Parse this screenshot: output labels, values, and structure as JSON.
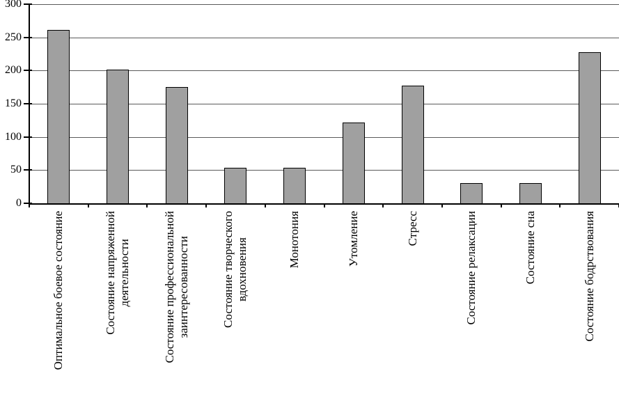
{
  "chart_data": {
    "type": "bar",
    "title": "",
    "xlabel": "",
    "ylabel": "",
    "categories": [
      [
        "Оптимальное боевое состояние"
      ],
      [
        "Состояние напряженной",
        "деятельности"
      ],
      [
        "Состояние профессиональной",
        "заинтересованности"
      ],
      [
        "Состояние творческого",
        "вдохновения"
      ],
      [
        "Монотония"
      ],
      [
        "Утомление"
      ],
      [
        "Стресс"
      ],
      [
        "Состояние релаксации"
      ],
      [
        "Состояние сна"
      ],
      [
        "Состояние бодрствования"
      ]
    ],
    "values": [
      261,
      201,
      175,
      53,
      54,
      122,
      177,
      30,
      30,
      228
    ],
    "y_ticks": [
      0,
      50,
      100,
      150,
      200,
      250,
      300
    ],
    "ylim": [
      0,
      300
    ],
    "grid": true,
    "legend": false,
    "x_label_rotation_deg": 90,
    "colors": {
      "bar_fill": "#a0a0a0",
      "bar_border": "#000000",
      "gridline": "#5a5a5a",
      "axis": "#000000",
      "text": "#000000",
      "background": "#ffffff"
    }
  }
}
